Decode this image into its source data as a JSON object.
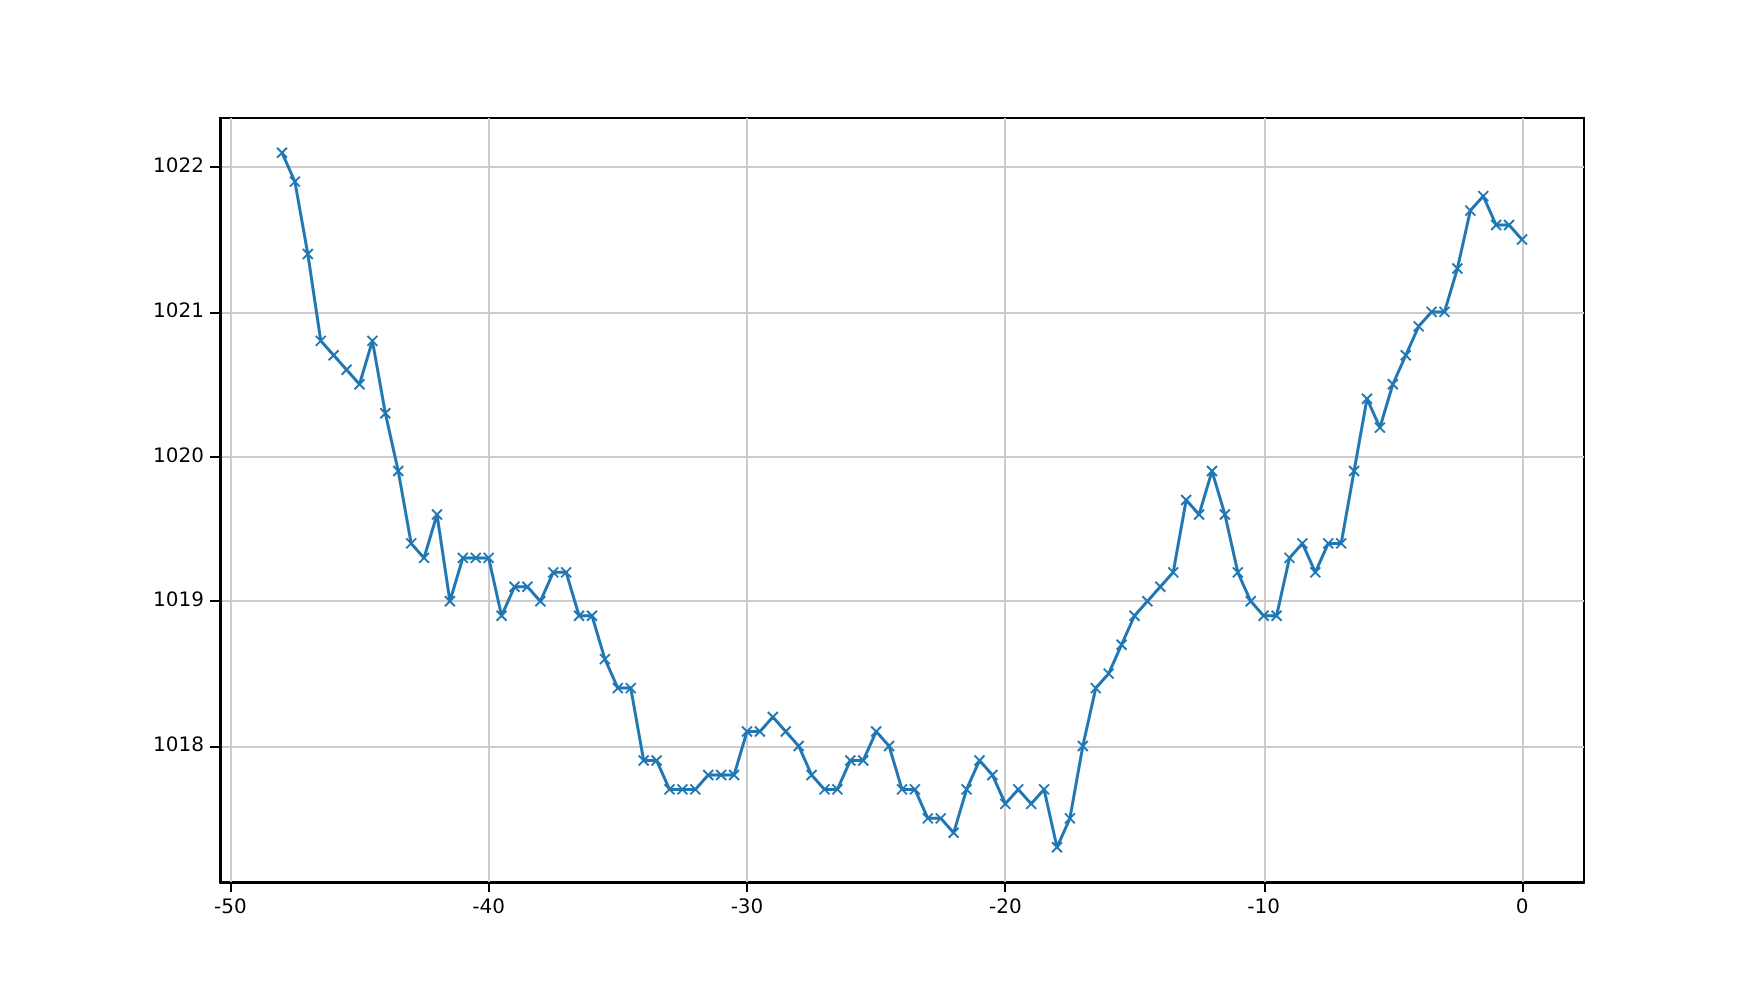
{
  "chart_data": {
    "type": "line",
    "marker": "cross",
    "grid": true,
    "x": [
      -48,
      -47.5,
      -47,
      -46.5,
      -46,
      -45.5,
      -45,
      -44.5,
      -44,
      -43.5,
      -43,
      -42.5,
      -42,
      -41.5,
      -41,
      -40.5,
      -40,
      -39.5,
      -39,
      -38.5,
      -38,
      -37.5,
      -37,
      -36.5,
      -36,
      -35.5,
      -35,
      -34.5,
      -34,
      -33.5,
      -33,
      -32.5,
      -32,
      -31.5,
      -31,
      -30.5,
      -30,
      -29.5,
      -29,
      -28.5,
      -28,
      -27.5,
      -27,
      -26.5,
      -26,
      -25.5,
      -25,
      -24.5,
      -24,
      -23.5,
      -23,
      -22.5,
      -22,
      -21.5,
      -21,
      -20.5,
      -20,
      -19.5,
      -19,
      -18.5,
      -18,
      -17.5,
      -17,
      -16.5,
      -16,
      -15.5,
      -15,
      -14.5,
      -14,
      -13.5,
      -13,
      -12.5,
      -12,
      -11.5,
      -11,
      -10.5,
      -10,
      -9.5,
      -9,
      -8.5,
      -8,
      -7.5,
      -7,
      -6.5,
      -6,
      -5.5,
      -5,
      -4.5,
      -4,
      -3.5,
      -3,
      -2.5,
      -2,
      -1.5,
      -1,
      -0.5,
      0
    ],
    "series": [
      {
        "color": "#1f77b4",
        "values": [
          1022.1,
          1021.9,
          1021.4,
          1020.8,
          1020.7,
          1020.6,
          1020.5,
          1020.8,
          1020.3,
          1019.9,
          1019.4,
          1019.3,
          1019.6,
          1019.0,
          1019.3,
          1019.3,
          1019.3,
          1018.9,
          1019.1,
          1019.1,
          1019.0,
          1019.2,
          1019.2,
          1018.9,
          1018.9,
          1018.6,
          1018.4,
          1018.4,
          1017.9,
          1017.9,
          1017.7,
          1017.7,
          1017.7,
          1017.8,
          1017.8,
          1017.8,
          1018.1,
          1018.1,
          1018.2,
          1018.1,
          1018.0,
          1017.8,
          1017.7,
          1017.7,
          1017.9,
          1017.9,
          1018.1,
          1018.0,
          1017.7,
          1017.7,
          1017.5,
          1017.5,
          1017.4,
          1017.7,
          1017.9,
          1017.8,
          1017.6,
          1017.7,
          1017.6,
          1017.7,
          1017.3,
          1017.5,
          1018.0,
          1018.4,
          1018.5,
          1018.7,
          1018.9,
          1019.0,
          1019.1,
          1019.2,
          1019.7,
          1019.6,
          1019.9,
          1019.6,
          1019.2,
          1019.0,
          1018.9,
          1018.9,
          1019.3,
          1019.4,
          1019.2,
          1019.4,
          1019.4,
          1019.9,
          1020.4,
          1020.2,
          1020.5,
          1020.7,
          1020.9,
          1021.0,
          1021.0,
          1021.3,
          1021.7,
          1021.8,
          1021.6,
          1021.6,
          1021.5
        ]
      }
    ],
    "xlim": [
      -50.4,
      2.4
    ],
    "ylim": [
      1017.06,
      1022.34
    ],
    "xticks": [
      -50,
      -40,
      -30,
      -20,
      -10,
      0
    ],
    "yticks": [
      1018,
      1019,
      1020,
      1021,
      1022
    ]
  }
}
